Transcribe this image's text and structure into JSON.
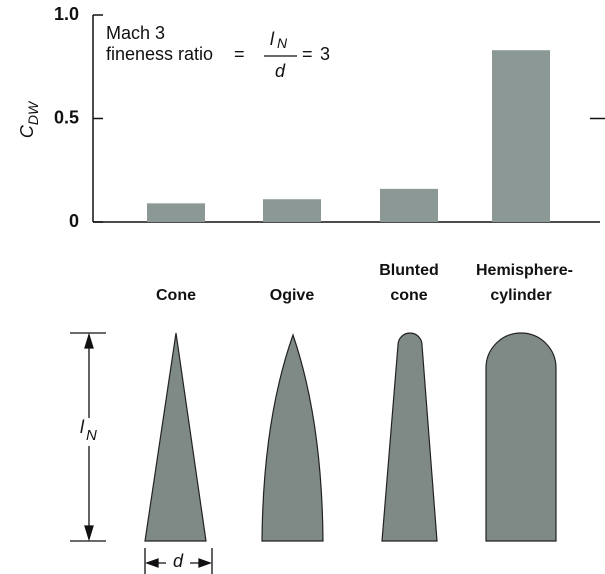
{
  "chart_data": {
    "type": "bar",
    "ylabel": "C",
    "ylabel_subscript": "DW",
    "annotation": {
      "line1": "Mach 3",
      "text": "fineness ratio",
      "equals": "=",
      "numerator": "l",
      "numerator_subscript": "N",
      "denominator": "d",
      "ratio": 3
    },
    "categories": [
      "Cone",
      "Ogive",
      "Blunted cone",
      "Hemisphere-cylinder"
    ],
    "values": [
      0.09,
      0.11,
      0.16,
      0.83
    ],
    "color": "#8c9896",
    "ylim": [
      0,
      1
    ],
    "yticks": [
      0,
      0.5,
      {
        "value": 1,
        "label": "1.0"
      }
    ],
    "diagram": {
      "length_label": "l",
      "length_subscript": "N",
      "diameter_label": "d"
    }
  }
}
